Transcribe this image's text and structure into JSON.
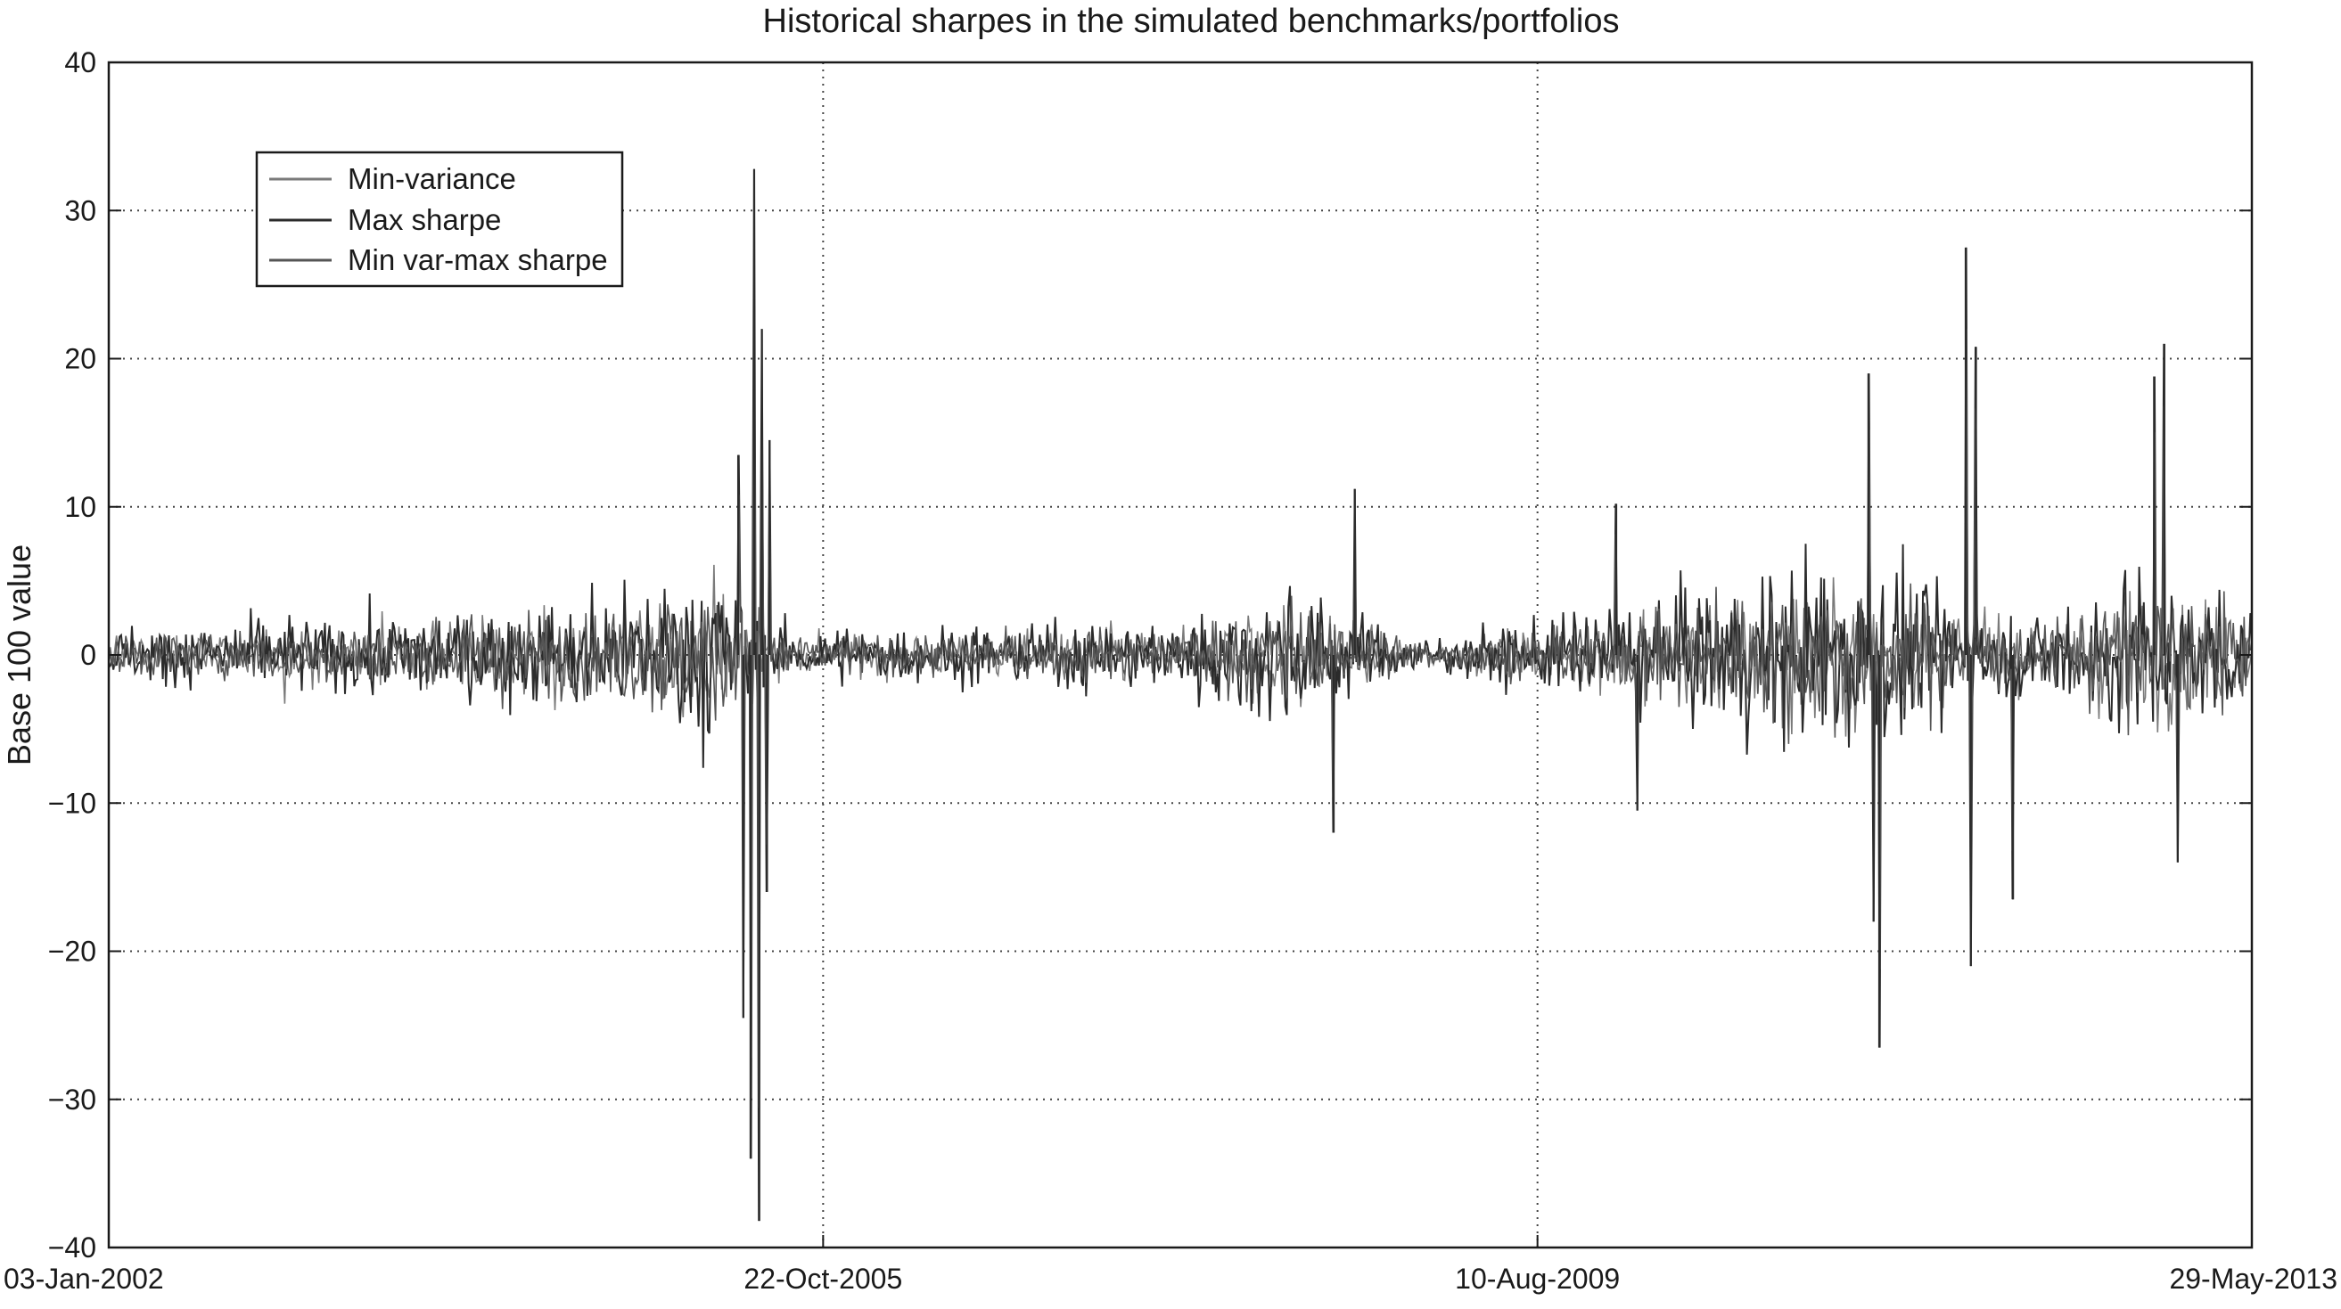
{
  "chart_data": {
    "type": "line",
    "title": "Historical sharpes in the simulated benchmarks/portfolios",
    "xlabel": "",
    "ylabel": "Base 100 value",
    "x_tick_labels": [
      "03-Jan-2002",
      "22-Oct-2005",
      "10-Aug-2009",
      "29-May-2013"
    ],
    "xlim": [
      "03-Jan-2002",
      "29-May-2013"
    ],
    "ylim": [
      -40,
      40
    ],
    "y_ticks": [
      40,
      30,
      20,
      10,
      0,
      -10,
      -20,
      -30,
      -40
    ],
    "y_tick_labels": [
      "40",
      "30",
      "20",
      "10",
      "0",
      "−10",
      "−20",
      "−30",
      "−40"
    ],
    "grid": true,
    "grid_style": "dotted",
    "legend_position": "top-left",
    "series": [
      {
        "name": "Min-variance",
        "color": "#7a7a7a"
      },
      {
        "name": "Max sharpe",
        "color": "#2b2b2b"
      },
      {
        "name": "Min var-max sharpe",
        "color": "#555555"
      }
    ],
    "spikes": [
      {
        "date": "2005-06-10",
        "value": 32.8
      },
      {
        "date": "2005-06-25",
        "value": 22.0
      },
      {
        "date": "2005-06-20",
        "value": -38.2
      },
      {
        "date": "2005-06-03",
        "value": -34.0
      },
      {
        "date": "2005-05-20",
        "value": -24.5
      },
      {
        "date": "2005-07-05",
        "value": -16.0
      },
      {
        "date": "2005-05-10",
        "value": 13.5
      },
      {
        "date": "2005-07-10",
        "value": 14.5
      },
      {
        "date": "2008-08-20",
        "value": 11.2
      },
      {
        "date": "2008-07-10",
        "value": -12.0
      },
      {
        "date": "2011-05-15",
        "value": 19.0
      },
      {
        "date": "2011-06-05",
        "value": -26.5
      },
      {
        "date": "2011-05-25",
        "value": -18.0
      },
      {
        "date": "2011-11-20",
        "value": 27.5
      },
      {
        "date": "2011-12-10",
        "value": 20.8
      },
      {
        "date": "2011-11-30",
        "value": -21.0
      },
      {
        "date": "2012-02-20",
        "value": -16.5
      },
      {
        "date": "2012-12-10",
        "value": 21.0
      },
      {
        "date": "2012-11-20",
        "value": 18.8
      },
      {
        "date": "2013-01-05",
        "value": -14.0
      },
      {
        "date": "2010-01-10",
        "value": 10.2
      },
      {
        "date": "2010-02-20",
        "value": -10.5
      }
    ]
  }
}
